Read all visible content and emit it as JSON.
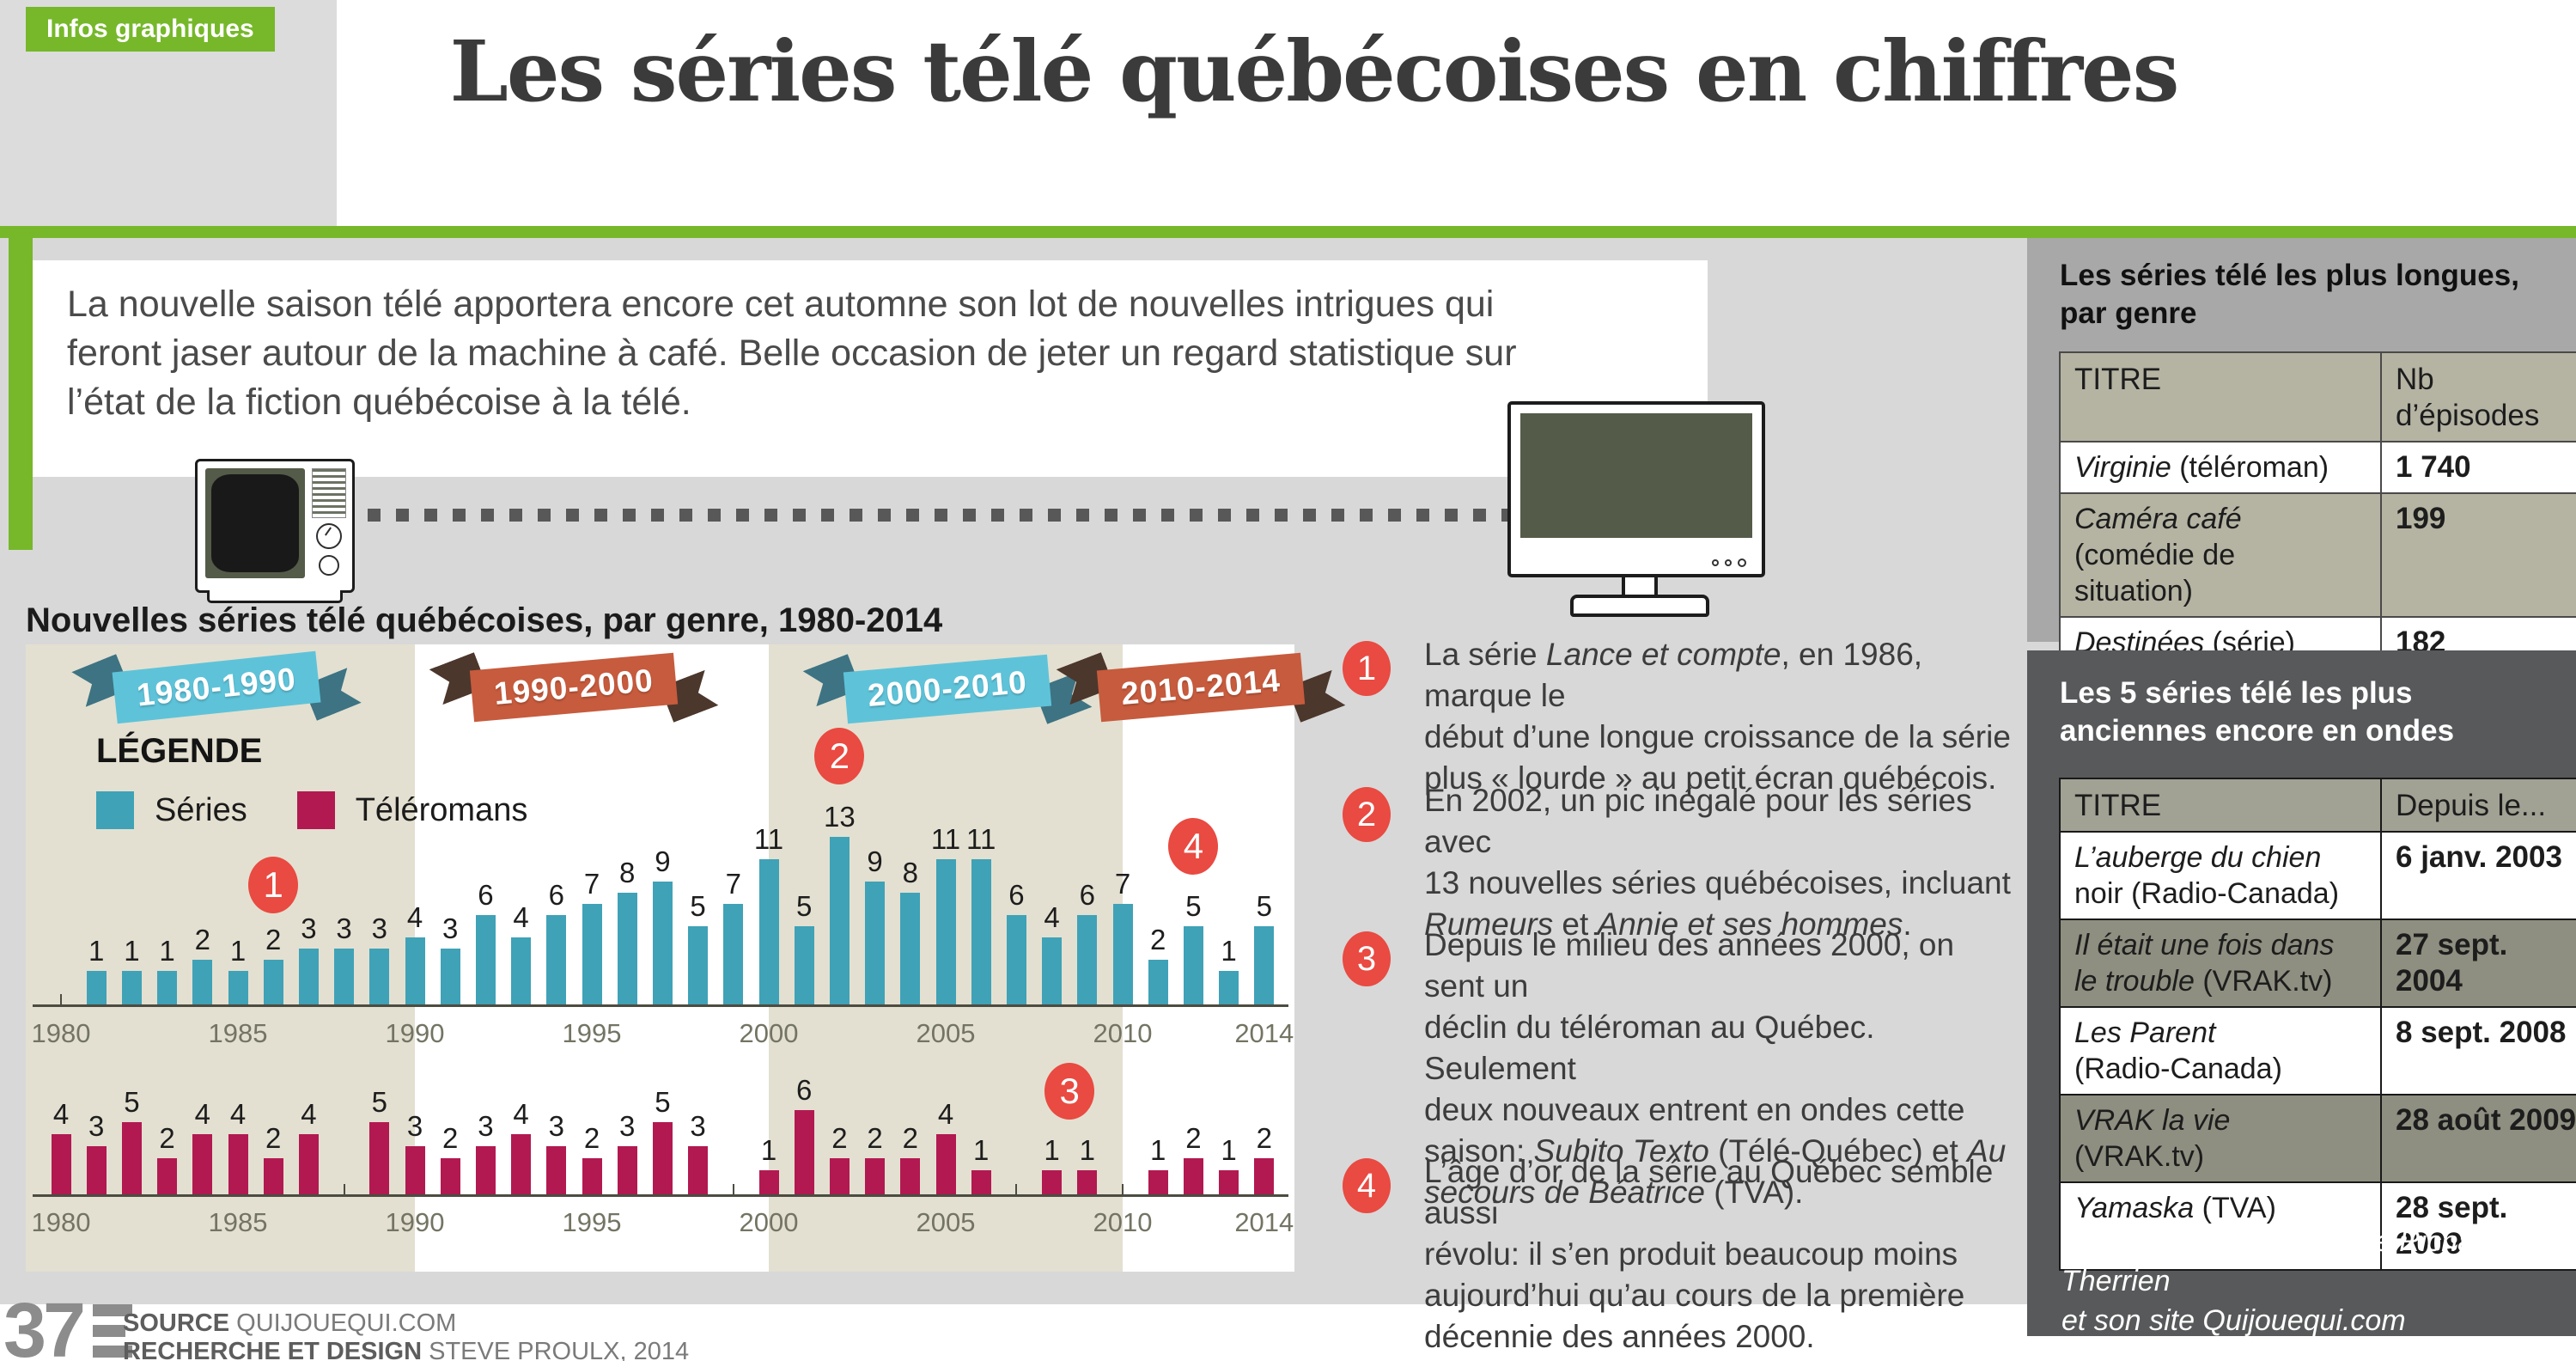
{
  "badge": "Infos graphiques",
  "title": "Les séries télé québécoises en chiffres",
  "intro_lines": [
    "La nouvelle saison télé apportera encore cet automne son lot de nouvelles intrigues qui",
    "feront jaser autour de la machine à café. Belle occasion de jeter un regard statistique sur",
    "l’état de la fiction québécoise à la télé."
  ],
  "chart_data": {
    "type": "bar",
    "title": "Nouvelles séries télé québécoises, par genre, 1980-2014",
    "xlabel": "",
    "ylabel": "",
    "grid": false,
    "x_range": [
      1980,
      2014
    ],
    "years": [
      1980,
      1981,
      1982,
      1983,
      1984,
      1985,
      1986,
      1987,
      1988,
      1989,
      1990,
      1991,
      1992,
      1993,
      1994,
      1995,
      1996,
      1997,
      1998,
      1999,
      2000,
      2001,
      2002,
      2003,
      2004,
      2005,
      2006,
      2007,
      2008,
      2009,
      2010,
      2011,
      2012,
      2013,
      2014
    ],
    "axis_tick_labels": [
      "1980",
      "1985",
      "1990",
      "1995",
      "2000",
      "2005",
      "2010",
      "2014"
    ],
    "legend": {
      "title": "LÉGENDE",
      "position": "top-left",
      "items": [
        {
          "label": "Séries",
          "color": "#3fa2b7"
        },
        {
          "label": "Téléromans",
          "color": "#b21951"
        }
      ]
    },
    "series": [
      {
        "name": "Séries",
        "color": "#3fa2b7",
        "values": [
          null,
          1,
          1,
          1,
          2,
          1,
          2,
          3,
          3,
          3,
          4,
          3,
          6,
          4,
          6,
          7,
          8,
          9,
          5,
          7,
          11,
          5,
          13,
          9,
          8,
          11,
          11,
          6,
          4,
          6,
          7,
          2,
          5,
          1,
          5
        ]
      },
      {
        "name": "Téléromans",
        "color": "#b21951",
        "values": [
          4,
          3,
          5,
          2,
          4,
          4,
          2,
          4,
          null,
          5,
          3,
          2,
          3,
          4,
          3,
          2,
          3,
          5,
          3,
          null,
          1,
          6,
          2,
          2,
          2,
          4,
          1,
          null,
          1,
          1,
          null,
          1,
          2,
          1,
          2
        ]
      }
    ],
    "decade_bands": [
      {
        "label": "1980-1990",
        "start": 1980,
        "end": 1990,
        "shaded": true,
        "theme": "blue",
        "banner": {
          "cx": 252,
          "cy": 800,
          "rot": -6
        }
      },
      {
        "label": "1990-2000",
        "start": 1990,
        "end": 2000,
        "shaded": false,
        "theme": "orange",
        "banner": {
          "cx": 668,
          "cy": 800,
          "rot": -5
        }
      },
      {
        "label": "2000-2010",
        "start": 2000,
        "end": 2010,
        "shaded": true,
        "theme": "blue",
        "banner": {
          "cx": 1103,
          "cy": 802,
          "rot": -5
        }
      },
      {
        "label": "2010-2014",
        "start": 2010,
        "end": 2014,
        "shaded": false,
        "theme": "orange",
        "banner": {
          "cx": 1398,
          "cy": 800,
          "rot": -5
        }
      }
    ],
    "banner_themes": {
      "blue": {
        "face": "#5ec3d9",
        "fold": "#3e7383"
      },
      "orange": {
        "face": "#c75b3d",
        "fold": "#4c372c"
      }
    },
    "band_shaded_color": "#e3e0d1",
    "marker_color": "#e94a41",
    "markers": [
      {
        "num": "1",
        "year": 1986,
        "y": 1030,
        "series": "Séries"
      },
      {
        "num": "2",
        "year": 2002,
        "y": 880,
        "series": "Séries"
      },
      {
        "num": "3",
        "year": 2008.5,
        "y": 1270,
        "series": "Téléromans"
      },
      {
        "num": "4",
        "year": 2012,
        "y": 985,
        "series": "Séries"
      }
    ]
  },
  "annotations": [
    {
      "num": "1",
      "lines": [
        [
          {
            "t": "La série "
          },
          {
            "t": "Lance et compte",
            "i": 1
          },
          {
            "t": ", en 1986, marque le"
          }
        ],
        [
          {
            "t": "début d’une longue croissance de la série"
          }
        ],
        [
          {
            "t": "plus « lourde » au petit écran québécois."
          }
        ]
      ]
    },
    {
      "num": "2",
      "lines": [
        [
          {
            "t": "En 2002, un pic inégalé pour les séries avec"
          }
        ],
        [
          {
            "t": "13 nouvelles séries québécoises, incluant"
          }
        ],
        [
          {
            "t": "Rumeurs",
            "i": 1
          },
          {
            "t": " et "
          },
          {
            "t": "Annie et ses hommes",
            "i": 1
          },
          {
            "t": "."
          }
        ]
      ]
    },
    {
      "num": "3",
      "lines": [
        [
          {
            "t": "Depuis le milieu des années 2000, on sent un"
          }
        ],
        [
          {
            "t": "déclin du téléroman au Québec. Seulement"
          }
        ],
        [
          {
            "t": "deux nouveaux entrent en ondes cette"
          }
        ],
        [
          {
            "t": "saison: "
          },
          {
            "t": "Subito Texto",
            "i": 1
          },
          {
            "t": " (Télé-Québec) et "
          },
          {
            "t": "Au",
            "i": 1
          }
        ],
        [
          {
            "t": "secours de Béatrice",
            "i": 1
          },
          {
            "t": " (TVA)."
          }
        ]
      ]
    },
    {
      "num": "4",
      "lines": [
        [
          {
            "t": "L’âge d’or de la série au Québec semble aussi"
          }
        ],
        [
          {
            "t": "révolu: il s’en produit beaucoup moins"
          }
        ],
        [
          {
            "t": "aujourd’hui qu’au cours de la première"
          }
        ],
        [
          {
            "t": "décennie des années 2000."
          }
        ]
      ]
    }
  ],
  "sidebar": {
    "top_panel": {
      "title_lines": [
        "Les séries télé les plus longues,",
        "par genre"
      ],
      "table": {
        "headers": [
          "TITRE",
          "Nb d’épisodes"
        ],
        "rows": [
          {
            "title": [
              [
                {
                  "t": "Virginie",
                  "i": 1
                },
                {
                  "t": " (téléroman)"
                }
              ]
            ],
            "value": "1 740",
            "shaded": false
          },
          {
            "title": [
              [
                {
                  "t": "Caméra café",
                  "i": 1
                }
              ],
              [
                {
                  "t": "(comédie de"
                }
              ],
              [
                {
                  "t": "situation)"
                }
              ]
            ],
            "value": "199",
            "shaded": true
          },
          {
            "title": [
              [
                {
                  "t": "Destinées",
                  "i": 1
                },
                {
                  "t": " (série)"
                }
              ]
            ],
            "value": "182",
            "shaded": false
          }
        ]
      }
    },
    "bottom_panel": {
      "title_lines": [
        "Les 5 séries télé les plus",
        "anciennes encore en ondes"
      ],
      "table": {
        "headers": [
          "TITRE",
          "Depuis le..."
        ],
        "rows": [
          {
            "title": [
              [
                {
                  "t": "L’auberge du chien",
                  "i": 1
                }
              ],
              [
                {
                  "t": "noir (Radio-Canada)"
                }
              ]
            ],
            "value": "6 janv. 2003",
            "shaded": false
          },
          {
            "title": [
              [
                {
                  "t": "Il était une fois dans",
                  "i": 1
                }
              ],
              [
                {
                  "t": "le trouble",
                  "i": 1
                },
                {
                  "t": " (VRAK.tv)"
                }
              ]
            ],
            "value": "27 sept. 2004",
            "shaded": true
          },
          {
            "title": [
              [
                {
                  "t": "Les Parent",
                  "i": 1
                }
              ],
              [
                {
                  "t": "(Radio-Canada)"
                }
              ]
            ],
            "value": "8 sept. 2008",
            "shaded": false
          },
          {
            "title": [
              [
                {
                  "t": "VRAK la vie",
                  "i": 1
                },
                {
                  "t": " (VRAK.tv)"
                }
              ]
            ],
            "value": "28 août 2009",
            "shaded": true
          },
          {
            "title": [
              [
                {
                  "t": "Yamaska",
                  "i": 1
                },
                {
                  "t": " (TVA)"
                }
              ]
            ],
            "value": "28 sept. 2009",
            "shaded": false
          }
        ]
      },
      "note_lines": [
        "Merci au chroniqueur télé Richard Therrien",
        "et son site Quijouequi.com"
      ]
    }
  },
  "footer": {
    "page_number": "37",
    "source_label": "SOURCE",
    "source_value": "QUIJOUEQUI.COM",
    "credit_label": "RECHERCHE ET DESIGN",
    "credit_value": "STEVE PROULX, 2014"
  },
  "colors": {
    "accent_green": "#76b82a",
    "page_gray": "#d8d8d8",
    "beige_band": "#e3e0d1",
    "teal": "#3fa2b7",
    "crimson": "#b21951",
    "marker_red": "#e94a41",
    "panel_light": "#a8a8a8",
    "panel_dark": "#58595a",
    "tv_screen_olive": "#545b49"
  }
}
